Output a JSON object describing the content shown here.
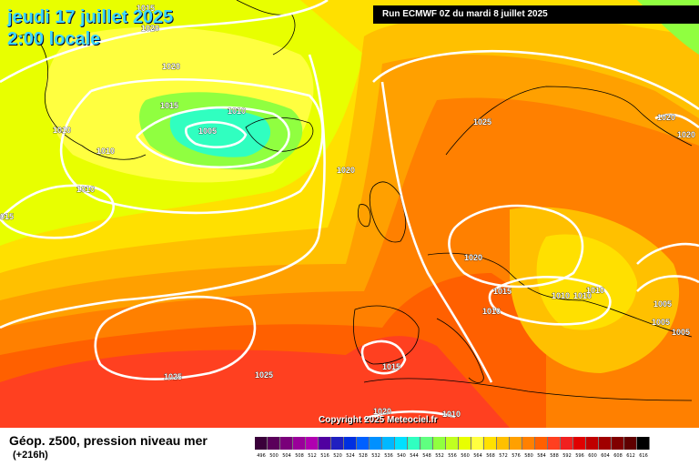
{
  "header": {
    "title_date": "jeudi 17 juillet 2025",
    "title_time": "2:00 locale",
    "run_info": "Run ECMWF 0Z du mardi 8 juillet 2025"
  },
  "footer": {
    "label": "Géop. z500, pression niveau mer",
    "forecast_hour": "(+216h)",
    "copyright": "Copyright 2025 Meteociel.fr"
  },
  "scale": {
    "values": [
      "496",
      "500",
      "504",
      "508",
      "512",
      "516",
      "520",
      "524",
      "528",
      "532",
      "536",
      "540",
      "544",
      "548",
      "552",
      "556",
      "560",
      "564",
      "568",
      "572",
      "576",
      "580",
      "584",
      "588",
      "592",
      "596",
      "600",
      "604",
      "608",
      "612",
      "616"
    ],
    "colors": [
      "#3a003a",
      "#5a005a",
      "#7a007a",
      "#9a009a",
      "#b000b0",
      "#5000a0",
      "#2020c0",
      "#0030e0",
      "#0060ff",
      "#0090ff",
      "#00b8ff",
      "#00e0ff",
      "#30ffc0",
      "#60ff80",
      "#90ff40",
      "#c0ff20",
      "#e8ff00",
      "#ffff40",
      "#ffe000",
      "#ffc000",
      "#ffa000",
      "#ff8000",
      "#ff6000",
      "#ff4020",
      "#f02020",
      "#e00000",
      "#c00000",
      "#a00000",
      "#800000",
      "#600000",
      "#000000"
    ]
  },
  "isobar_labels": [
    {
      "text": "1015",
      "id": "a"
    },
    {
      "text": "1020",
      "id": "b"
    },
    {
      "text": "1020",
      "id": "c"
    },
    {
      "text": "1015",
      "id": "d"
    },
    {
      "text": "1010",
      "id": "e"
    },
    {
      "text": "1005",
      "id": "f"
    },
    {
      "text": "1010",
      "id": "g"
    },
    {
      "text": "1010",
      "id": "h"
    },
    {
      "text": "1010",
      "id": "i"
    },
    {
      "text": "015",
      "id": "j"
    },
    {
      "text": "1020",
      "id": "k"
    },
    {
      "text": "1025",
      "id": "l"
    },
    {
      "text": "1020",
      "id": "m"
    },
    {
      "text": "1020",
      "id": "n"
    },
    {
      "text": "1020",
      "id": "o"
    },
    {
      "text": "1015",
      "id": "p"
    },
    {
      "text": "1010",
      "id": "q"
    },
    {
      "text": "1010",
      "id": "r"
    },
    {
      "text": "1010",
      "id": "s"
    },
    {
      "text": "1010",
      "id": "t"
    },
    {
      "text": "1005",
      "id": "u"
    },
    {
      "text": "1005",
      "id": "v"
    },
    {
      "text": "1005",
      "id": "w"
    },
    {
      "text": "1015",
      "id": "x"
    },
    {
      "text": "1025",
      "id": "y"
    },
    {
      "text": "1025",
      "id": "z"
    },
    {
      "text": "1020",
      "id": "aa"
    },
    {
      "text": "1010",
      "id": "bb"
    }
  ]
}
